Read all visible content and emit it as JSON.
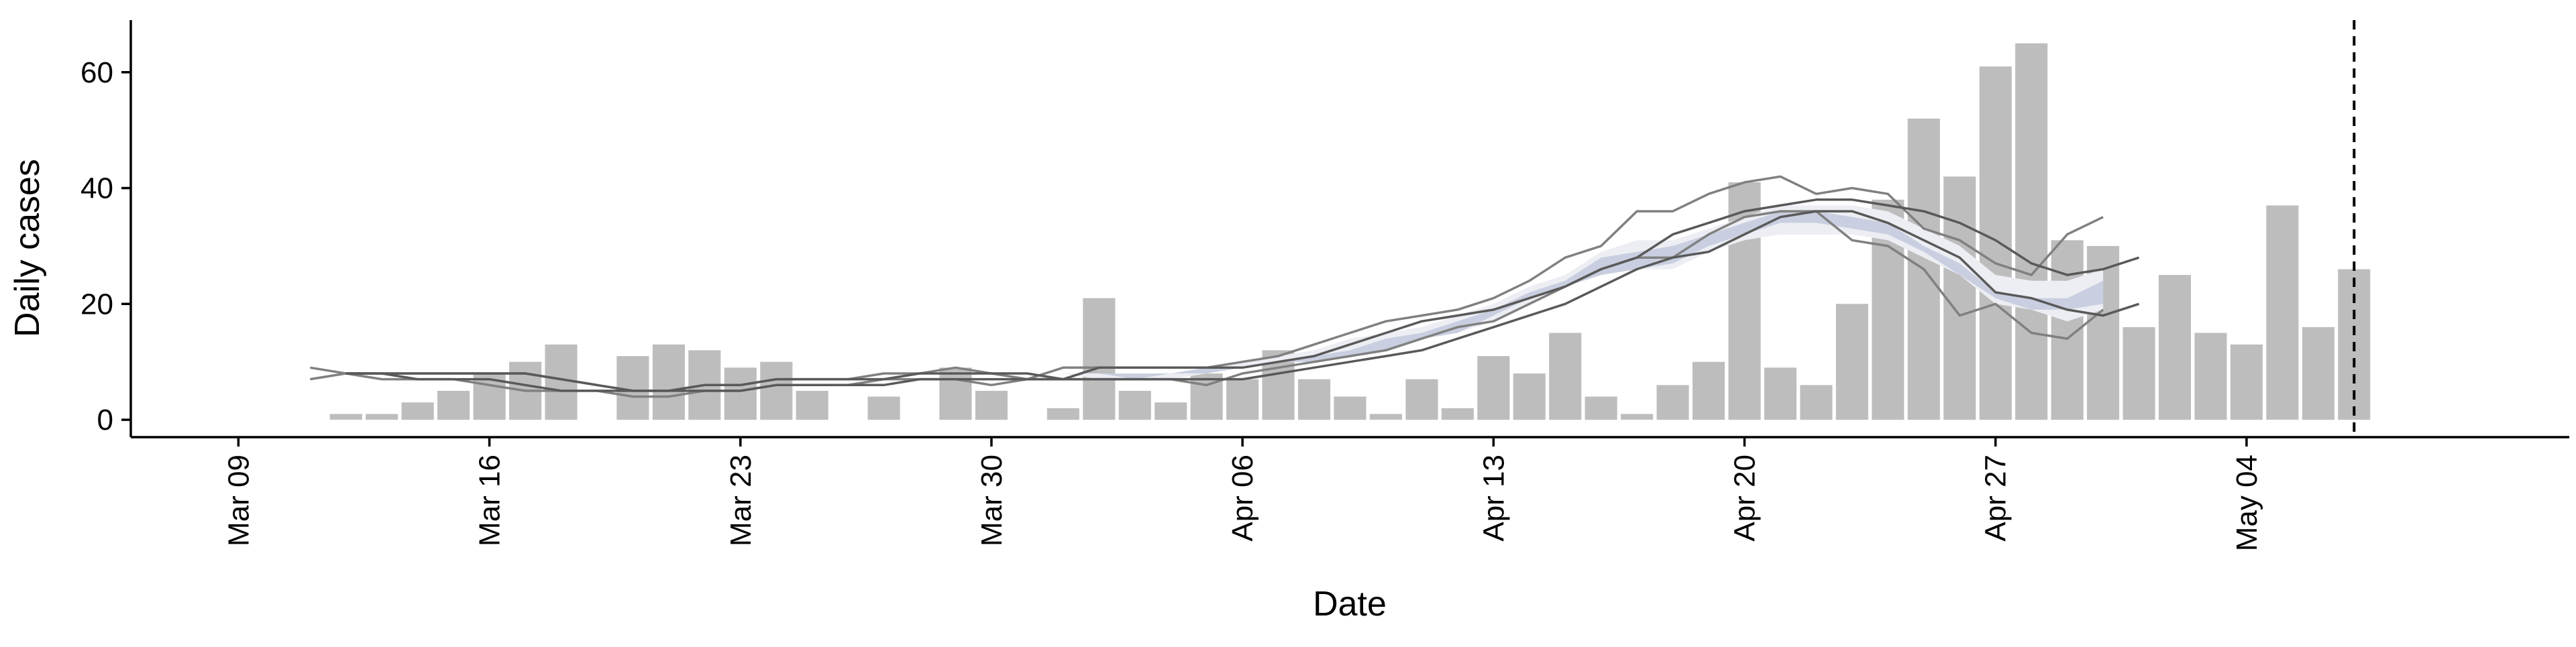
{
  "chart_data": {
    "type": "bar",
    "xlabel": "Date",
    "ylabel": "Daily cases",
    "date_format": "YYYY-MM-DD",
    "xlim": [
      "2020-03-06",
      "2020-05-13"
    ],
    "ylim": [
      -3,
      69
    ],
    "x_ticks": [
      {
        "date": "2020-03-09",
        "label": "Mar 09"
      },
      {
        "date": "2020-03-16",
        "label": "Mar 16"
      },
      {
        "date": "2020-03-23",
        "label": "Mar 23"
      },
      {
        "date": "2020-03-30",
        "label": "Mar 30"
      },
      {
        "date": "2020-04-06",
        "label": "Apr 06"
      },
      {
        "date": "2020-04-13",
        "label": "Apr 13"
      },
      {
        "date": "2020-04-20",
        "label": "Apr 20"
      },
      {
        "date": "2020-04-27",
        "label": "Apr 27"
      },
      {
        "date": "2020-05-04",
        "label": "May 04"
      }
    ],
    "y_ticks": [
      0,
      20,
      40,
      60
    ],
    "grid": false,
    "legend": "none",
    "colors": {
      "bars": "#bdbdbd",
      "outer_band": "#eceef3",
      "inner_band": "#c9cfe0",
      "bound_lines": "#808080",
      "nowcast_lines": "#595959",
      "vline": "#000000"
    },
    "bars": {
      "start_date": "2020-03-12",
      "values": [
        1,
        1,
        3,
        5,
        8,
        10,
        13,
        0,
        11,
        13,
        12,
        9,
        10,
        5,
        0,
        4,
        0,
        9,
        5,
        0,
        2,
        21,
        5,
        3,
        8,
        7,
        12,
        7,
        4,
        1,
        7,
        2,
        11,
        8,
        15,
        4,
        1,
        6,
        10,
        41,
        9,
        6,
        20,
        38,
        52,
        42,
        61,
        65,
        31,
        30,
        16,
        25,
        15,
        13,
        37,
        16,
        26
      ]
    },
    "outer_band": {
      "start_date": "2020-03-13",
      "upper": [
        8,
        8,
        8,
        8,
        8,
        7,
        6,
        6,
        6,
        6,
        7,
        7,
        7,
        7,
        8,
        8,
        8,
        8,
        8,
        8,
        8,
        8,
        8,
        9,
        10,
        11,
        12,
        14,
        15,
        16,
        18,
        20,
        23,
        25,
        29,
        31,
        31,
        33,
        35,
        37,
        37,
        37,
        36,
        33,
        30,
        25,
        24,
        24,
        26
      ],
      "lower": [
        8,
        8,
        8,
        8,
        8,
        7,
        6,
        6,
        6,
        6,
        7,
        7,
        7,
        7,
        8,
        8,
        8,
        8,
        8,
        8,
        7,
        7,
        7,
        8,
        9,
        10,
        10,
        12,
        13,
        14,
        15,
        17,
        20,
        23,
        25,
        26,
        26,
        29,
        31,
        32,
        32,
        32,
        31,
        28,
        25,
        20,
        19,
        17,
        19
      ]
    },
    "inner_band": {
      "start_date": "2020-03-13",
      "upper": [
        8,
        8,
        8,
        8,
        8,
        7,
        6,
        6,
        6,
        6,
        7,
        7,
        7,
        7,
        8,
        8,
        8,
        8,
        8,
        8,
        8,
        8,
        8,
        9,
        9,
        10,
        11,
        12,
        14,
        15,
        17,
        19,
        22,
        24,
        28,
        29,
        30,
        32,
        34,
        36,
        36,
        35,
        34,
        30,
        27,
        22,
        21,
        21,
        24
      ],
      "lower": [
        8,
        8,
        8,
        8,
        8,
        7,
        6,
        6,
        6,
        6,
        7,
        7,
        7,
        7,
        8,
        8,
        8,
        8,
        8,
        8,
        8,
        7,
        8,
        8,
        9,
        10,
        10,
        11,
        12,
        14,
        15,
        18,
        21,
        23,
        25,
        26,
        27,
        30,
        32,
        34,
        34,
        33,
        32,
        29,
        25,
        21,
        19,
        19,
        20
      ]
    },
    "bound_lines": [
      {
        "start_date": "2020-03-11",
        "values": [
          7,
          8,
          8,
          8,
          8,
          8,
          8,
          7,
          6,
          5,
          5,
          6,
          6,
          7,
          7,
          7,
          8,
          8,
          9,
          8,
          7,
          9,
          9,
          9,
          9,
          9,
          10,
          11,
          13,
          15,
          17,
          18,
          19,
          21,
          24,
          28,
          30,
          36,
          36,
          39,
          41,
          42,
          39,
          40,
          39,
          33,
          31,
          27,
          25,
          32,
          35
        ]
      },
      {
        "start_date": "2020-03-11",
        "values": [
          9,
          8,
          7,
          7,
          7,
          6,
          5,
          5,
          5,
          4,
          4,
          5,
          5,
          6,
          6,
          6,
          7,
          7,
          7,
          6,
          7,
          7,
          7,
          7,
          7,
          6,
          8,
          9,
          10,
          11,
          12,
          14,
          16,
          17,
          20,
          23,
          26,
          28,
          28,
          32,
          35,
          36,
          36,
          31,
          30,
          26,
          18,
          20,
          15,
          14,
          19
        ]
      }
    ],
    "nowcast_lines": [
      {
        "start_date": "2020-03-12",
        "values": [
          8,
          8,
          8,
          8,
          8,
          8,
          7,
          6,
          5,
          5,
          6,
          6,
          7,
          7,
          7,
          7,
          8,
          8,
          8,
          8,
          7,
          9,
          9,
          9,
          9,
          9,
          10,
          11,
          13,
          15,
          17,
          18,
          19,
          21,
          23,
          26,
          28,
          32,
          34,
          36,
          37,
          38,
          38,
          37,
          36,
          34,
          31,
          27,
          25,
          26,
          28
        ]
      },
      {
        "start_date": "2020-03-12",
        "values": [
          8,
          8,
          7,
          7,
          7,
          6,
          5,
          5,
          5,
          5,
          5,
          5,
          6,
          6,
          6,
          6,
          7,
          7,
          7,
          7,
          7,
          7,
          7,
          7,
          7,
          7,
          8,
          9,
          10,
          11,
          12,
          14,
          16,
          18,
          20,
          23,
          26,
          28,
          29,
          32,
          35,
          36,
          36,
          34,
          31,
          28,
          22,
          21,
          19,
          18,
          20
        ]
      }
    ],
    "vline_date": "2020-05-07"
  }
}
